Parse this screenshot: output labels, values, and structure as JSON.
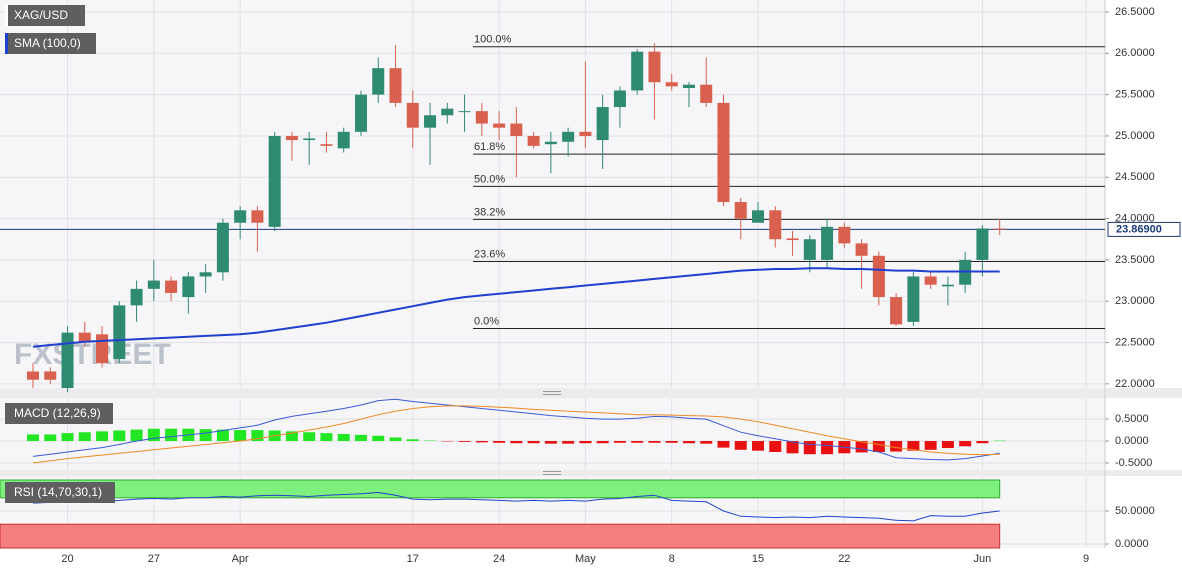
{
  "chart_data": {
    "type": "candlestick",
    "name": "XAG/USD",
    "categories": [
      null,
      null,
      "20",
      null,
      null,
      null,
      null,
      "27",
      null,
      null,
      null,
      null,
      "Apr",
      null,
      null,
      null,
      null,
      null,
      null,
      null,
      null,
      null,
      "17",
      null,
      null,
      null,
      null,
      "24",
      null,
      null,
      null,
      null,
      "May",
      null,
      null,
      null,
      null,
      "8",
      null,
      null,
      null,
      null,
      "15",
      null,
      null,
      null,
      null,
      "22",
      null,
      null,
      null,
      null,
      null,
      null,
      null,
      "Jun",
      null,
      null,
      null,
      null,
      null,
      "9"
    ],
    "open": [
      22.15,
      22.15,
      21.95,
      22.62,
      22.6,
      22.3,
      22.95,
      23.15,
      23.25,
      23.05,
      23.3,
      23.35,
      23.95,
      24.1,
      23.9,
      25.0,
      24.95,
      24.9,
      24.85,
      25.05,
      25.5,
      25.82,
      25.4,
      25.1,
      25.25,
      25.3,
      25.3,
      25.15,
      25.15,
      25.0,
      24.9,
      24.93,
      25.05,
      24.95,
      25.35,
      25.55,
      26.02,
      25.65,
      25.58,
      25.62,
      25.4,
      24.2,
      23.95,
      24.1,
      23.76,
      23.5,
      23.5,
      23.9,
      23.7,
      23.55,
      23.05,
      22.75,
      23.3,
      23.18,
      23.2,
      23.5,
      23.88,
      null,
      null,
      null,
      null,
      null
    ],
    "high": [
      22.25,
      22.2,
      22.7,
      22.75,
      22.7,
      23.0,
      23.25,
      23.5,
      23.3,
      23.35,
      23.45,
      24.0,
      24.15,
      24.15,
      25.05,
      25.05,
      25.05,
      25.05,
      25.1,
      25.55,
      25.95,
      26.1,
      25.55,
      25.4,
      25.4,
      25.5,
      25.4,
      25.3,
      25.35,
      25.05,
      25.05,
      25.1,
      25.9,
      25.5,
      25.6,
      26.05,
      26.12,
      25.75,
      25.65,
      25.95,
      25.5,
      24.25,
      24.2,
      24.15,
      23.85,
      23.8,
      24.0,
      23.95,
      23.75,
      23.6,
      23.1,
      23.35,
      23.35,
      23.3,
      23.6,
      23.92,
      24.0,
      null,
      null,
      null,
      null,
      null
    ],
    "low": [
      21.95,
      22.0,
      21.9,
      22.45,
      22.2,
      22.25,
      22.75,
      23.0,
      23.0,
      22.85,
      23.1,
      23.25,
      23.75,
      23.6,
      23.85,
      24.7,
      24.65,
      24.8,
      24.8,
      25.0,
      25.4,
      25.35,
      24.85,
      24.65,
      25.15,
      25.05,
      25.0,
      24.95,
      24.5,
      24.85,
      24.55,
      24.75,
      24.85,
      24.6,
      25.1,
      25.5,
      25.2,
      25.55,
      25.35,
      25.35,
      24.15,
      23.75,
      23.95,
      23.65,
      23.55,
      23.35,
      23.4,
      23.65,
      23.15,
      22.95,
      22.7,
      22.7,
      23.15,
      22.95,
      23.1,
      23.3,
      23.8,
      null,
      null,
      null,
      null,
      null
    ],
    "close": [
      22.05,
      22.05,
      22.62,
      22.5,
      22.25,
      22.95,
      23.15,
      23.25,
      23.1,
      23.3,
      23.35,
      23.95,
      24.1,
      23.95,
      25.0,
      24.95,
      24.97,
      24.88,
      25.05,
      25.5,
      25.82,
      25.4,
      25.1,
      25.25,
      25.33,
      25.3,
      25.15,
      25.1,
      25.0,
      24.88,
      24.93,
      25.05,
      25.0,
      25.35,
      25.55,
      26.02,
      25.65,
      25.6,
      25.62,
      25.4,
      24.2,
      24.0,
      24.1,
      23.75,
      23.74,
      23.75,
      23.9,
      23.7,
      23.55,
      23.05,
      22.72,
      23.3,
      23.2,
      23.2,
      23.5,
      23.88,
      23.87,
      null,
      null,
      null,
      null,
      null
    ],
    "up_color": "#2f8a72",
    "down_color": "#d9604e",
    "ylim": [
      21.95,
      26.645
    ],
    "yticks": [
      {
        "value": 22.0,
        "label": "22.0000"
      },
      {
        "value": 22.5,
        "label": "22.5000"
      },
      {
        "value": 23.0,
        "label": "23.0000"
      },
      {
        "value": 23.5,
        "label": "23.5000"
      },
      {
        "value": 24.0,
        "label": "24.0000"
      },
      {
        "value": 24.5,
        "label": "24.5000"
      },
      {
        "value": 25.0,
        "label": "25.0000"
      },
      {
        "value": 25.5,
        "label": "25.5000"
      },
      {
        "value": 26.0,
        "label": "26.0000"
      },
      {
        "value": 26.5,
        "label": "26.5000"
      }
    ],
    "grid": true,
    "last_price": {
      "value": 23.869,
      "label": "23.86900"
    },
    "watermark": "FXSTREET",
    "sma": {
      "name": "SMA (100,0)",
      "color": "#1f3fcf",
      "values": [
        22.45,
        22.47,
        22.49,
        22.51,
        22.52,
        22.53,
        22.54,
        22.55,
        22.56,
        22.57,
        22.58,
        22.59,
        22.6,
        22.62,
        22.65,
        22.68,
        22.71,
        22.74,
        22.78,
        22.82,
        22.86,
        22.9,
        22.94,
        22.98,
        23.02,
        23.05,
        23.07,
        23.09,
        23.11,
        23.13,
        23.15,
        23.17,
        23.19,
        23.21,
        23.23,
        23.25,
        23.27,
        23.29,
        23.31,
        23.33,
        23.35,
        23.37,
        23.38,
        23.39,
        23.39,
        23.4,
        23.4,
        23.39,
        23.39,
        23.38,
        23.37,
        23.37,
        23.36,
        23.36,
        23.36,
        23.36,
        23.36,
        null,
        null,
        null,
        null,
        null
      ]
    },
    "fibonacci": [
      {
        "label": "100.0%",
        "value": 26.08
      },
      {
        "label": "61.8%",
        "value": 24.78
      },
      {
        "label": "50.0%",
        "value": 24.39
      },
      {
        "label": "38.2%",
        "value": 23.99
      },
      {
        "label": "23.6%",
        "value": 23.48
      },
      {
        "label": "0.0%",
        "value": 22.67
      }
    ],
    "macd": {
      "name": "MACD (12,26,9)",
      "macd_color": "#3a5ad8",
      "signal_color": "#f08a24",
      "pos_color": "#22e622",
      "neg_color": "#e81010",
      "ylim": [
        -0.66,
        0.98
      ],
      "yticks": [
        {
          "value": 0.5,
          "label": "0.5000"
        },
        {
          "value": 0,
          "label": "0.0000"
        },
        {
          "value": -0.5,
          "label": "-0.5000"
        }
      ],
      "macd": [
        -0.35,
        -0.3,
        -0.25,
        -0.2,
        -0.15,
        -0.08,
        0.0,
        0.06,
        0.1,
        0.14,
        0.18,
        0.24,
        0.3,
        0.36,
        0.48,
        0.56,
        0.62,
        0.68,
        0.74,
        0.82,
        0.92,
        0.95,
        0.9,
        0.86,
        0.82,
        0.78,
        0.74,
        0.7,
        0.66,
        0.62,
        0.58,
        0.55,
        0.52,
        0.5,
        0.5,
        0.52,
        0.56,
        0.55,
        0.52,
        0.5,
        0.35,
        0.2,
        0.12,
        0.05,
        -0.02,
        -0.08,
        -0.1,
        -0.14,
        -0.18,
        -0.25,
        -0.38,
        -0.4,
        -0.42,
        -0.43,
        -0.4,
        -0.34,
        -0.28,
        null,
        null,
        null,
        null,
        null
      ],
      "signal": [
        -0.5,
        -0.45,
        -0.4,
        -0.36,
        -0.32,
        -0.28,
        -0.24,
        -0.2,
        -0.16,
        -0.12,
        -0.08,
        -0.04,
        0.0,
        0.05,
        0.12,
        0.18,
        0.25,
        0.32,
        0.4,
        0.5,
        0.6,
        0.68,
        0.74,
        0.78,
        0.8,
        0.8,
        0.79,
        0.77,
        0.75,
        0.72,
        0.7,
        0.68,
        0.66,
        0.64,
        0.62,
        0.6,
        0.6,
        0.59,
        0.58,
        0.57,
        0.55,
        0.5,
        0.44,
        0.36,
        0.28,
        0.2,
        0.12,
        0.05,
        -0.02,
        -0.08,
        -0.15,
        -0.2,
        -0.25,
        -0.28,
        -0.3,
        -0.31,
        -0.3,
        null,
        null,
        null,
        null,
        null
      ],
      "histogram": [
        0.15,
        0.15,
        0.18,
        0.2,
        0.22,
        0.24,
        0.26,
        0.28,
        0.28,
        0.28,
        0.27,
        0.26,
        0.25,
        0.25,
        0.24,
        0.22,
        0.2,
        0.18,
        0.16,
        0.14,
        0.12,
        0.08,
        0.04,
        0.01,
        -0.01,
        -0.02,
        -0.03,
        -0.04,
        -0.05,
        -0.05,
        -0.06,
        -0.06,
        -0.05,
        -0.05,
        -0.04,
        -0.04,
        -0.04,
        -0.04,
        -0.05,
        -0.06,
        -0.15,
        -0.2,
        -0.22,
        -0.25,
        -0.28,
        -0.3,
        -0.3,
        -0.28,
        -0.26,
        -0.25,
        -0.24,
        -0.22,
        -0.2,
        -0.16,
        -0.12,
        -0.05,
        0.01,
        null,
        null,
        null,
        null,
        null
      ]
    },
    "rsi": {
      "name": "RSI (14,70,30,1)",
      "color": "#2244cc",
      "overbought": 70,
      "oversold": 30,
      "overbought_color": "#7ef07e",
      "oversold_color": "#f57f7f",
      "ylim": [
        -6,
        103
      ],
      "yticks": [
        {
          "value": 50,
          "label": "50.0000"
        },
        {
          "value": 0,
          "label": "0.0000"
        }
      ],
      "values": [
        62,
        63,
        66,
        65,
        64,
        66,
        68,
        69,
        68,
        70,
        70,
        72,
        71,
        73,
        74,
        73,
        72,
        74,
        75,
        76,
        78,
        74,
        68,
        67,
        68,
        68,
        67,
        66,
        65,
        66,
        65,
        66,
        65,
        68,
        69,
        72,
        74,
        66,
        65,
        64,
        50,
        42,
        41,
        40,
        41,
        40,
        42,
        41,
        40,
        39,
        36,
        35,
        43,
        42,
        42,
        47,
        50,
        null,
        null,
        null,
        null,
        null
      ]
    }
  }
}
